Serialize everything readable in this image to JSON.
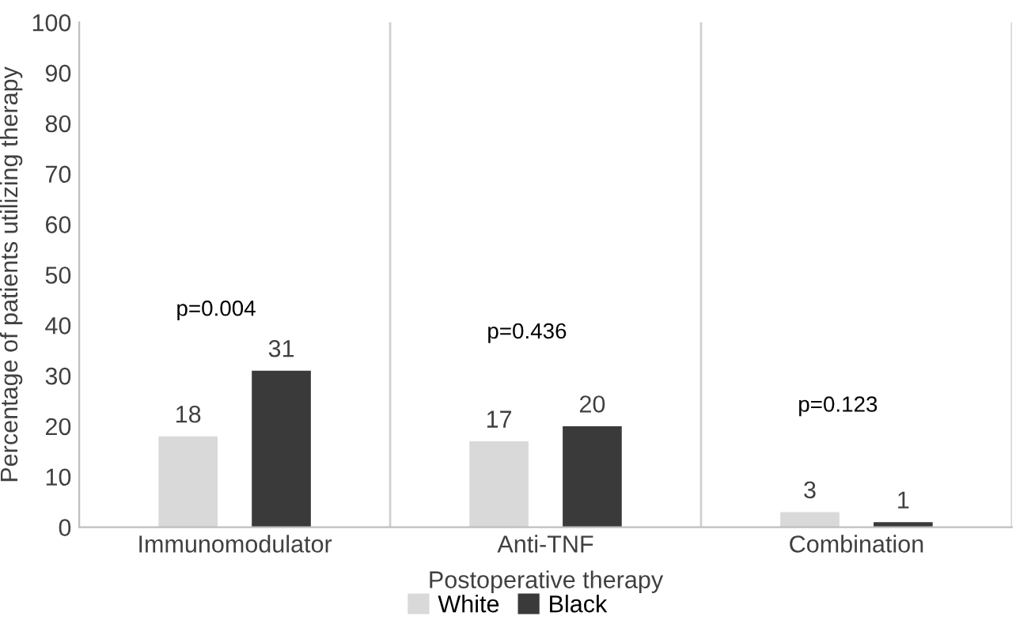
{
  "chart_data": {
    "type": "bar",
    "xlabel": "Postoperative therapy",
    "ylabel": "Percentage of patients utilizing therapy",
    "categories": [
      "Immunomodulator",
      "Anti-TNF",
      "Combination"
    ],
    "series": [
      {
        "name": "White",
        "color": "#d9d9d9",
        "values": [
          18,
          17,
          3
        ]
      },
      {
        "name": "Black",
        "color": "#3a3a3a",
        "values": [
          31,
          20,
          1
        ]
      }
    ],
    "ylim": [
      0,
      100
    ],
    "yticks": [
      0,
      10,
      20,
      30,
      40,
      50,
      60,
      70,
      80,
      90,
      100
    ],
    "grid": "x",
    "legend": "bottom",
    "data_labels": true,
    "annotations": [
      "p=0.004",
      "p=0.436",
      "p=0.123"
    ]
  }
}
